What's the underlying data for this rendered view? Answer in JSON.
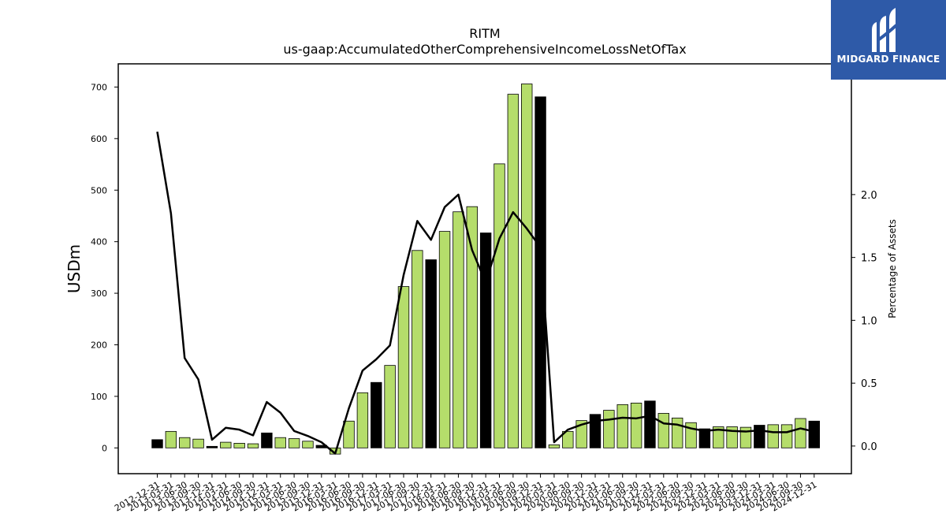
{
  "chart_data": {
    "type": "bar",
    "title": "RITM",
    "subtitle": "us-gaap:AccumulatedOtherComprehensiveIncomeLossNetOfTax",
    "ylabel": "USDm",
    "y2label": "Percentage of Assets",
    "ylim": [
      -50,
      745
    ],
    "y2lim": [
      -0.22,
      3.04
    ],
    "yticks": [
      0,
      100,
      200,
      300,
      400,
      500,
      600,
      700
    ],
    "y2ticks": [
      0.0,
      0.5,
      1.0,
      1.5,
      2.0
    ],
    "y2tick_labels": [
      "0.0",
      "0.5",
      "1.0",
      "1.5",
      "2.0"
    ],
    "grid": false,
    "categories": [
      "2012-12-31",
      "2013-03-31",
      "2013-06-30",
      "2013-09-30",
      "2013-12-31",
      "2014-03-31",
      "2014-06-30",
      "2014-09-30",
      "2014-12-31",
      "2015-03-31",
      "2015-06-30",
      "2015-09-30",
      "2015-12-31",
      "2016-03-31",
      "2016-06-30",
      "2016-09-30",
      "2016-12-31",
      "2017-03-31",
      "2017-06-30",
      "2017-09-30",
      "2017-12-31",
      "2018-03-31",
      "2018-06-30",
      "2018-09-30",
      "2018-12-31",
      "2019-03-31",
      "2019-06-30",
      "2019-09-30",
      "2019-12-31",
      "2020-03-31",
      "2020-06-30",
      "2020-09-30",
      "2020-12-31",
      "2021-03-31",
      "2021-06-30",
      "2021-09-30",
      "2021-12-31",
      "2022-03-31",
      "2022-06-30",
      "2022-09-30",
      "2022-12-31",
      "2023-03-31",
      "2023-06-30",
      "2023-09-30",
      "2023-12-31",
      "2024-03-31",
      "2024-06-30",
      "2024-09-30",
      "2024-12-31"
    ],
    "series": [
      {
        "kind": "bar",
        "values": [
          16,
          32,
          20,
          17,
          3,
          11,
          9,
          8,
          29,
          20,
          18,
          13,
          5,
          -12,
          52,
          107,
          127,
          160,
          313,
          383,
          365,
          420,
          458,
          468,
          417,
          551,
          686,
          706,
          681,
          6,
          32,
          53,
          65,
          73,
          84,
          87,
          91,
          67,
          58,
          49,
          37,
          41,
          41,
          40,
          44,
          45,
          45,
          57,
          52
        ]
      },
      {
        "kind": "line",
        "axis": "right",
        "values": [
          2.5,
          1.85,
          0.7,
          0.53,
          0.05,
          0.145,
          0.13,
          0.085,
          0.35,
          0.265,
          0.12,
          0.08,
          0.03,
          -0.06,
          0.3,
          0.6,
          0.69,
          0.8,
          1.36,
          1.79,
          1.64,
          1.9,
          2.0,
          1.56,
          1.3,
          1.65,
          1.86,
          1.73,
          1.58,
          0.03,
          0.13,
          0.17,
          0.2,
          0.21,
          0.225,
          0.22,
          0.24,
          0.18,
          0.17,
          0.14,
          0.12,
          0.13,
          0.12,
          0.115,
          0.125,
          0.11,
          0.11,
          0.14,
          0.115
        ]
      }
    ],
    "colors": {
      "bar": "#b5dd6b",
      "bar_highlight": "#000000",
      "line": "#000000"
    },
    "highlight_months": [
      "12"
    ]
  },
  "logo": {
    "text": "MIDGARD FINANCE",
    "background": "#2e5aa8"
  }
}
